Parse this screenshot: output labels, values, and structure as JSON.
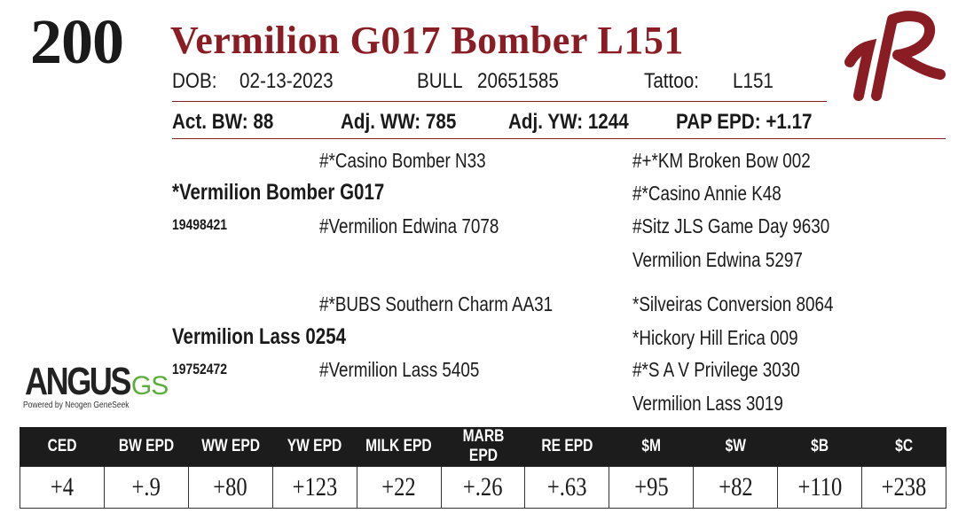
{
  "lot_number": "200",
  "animal_name": "Vermilion G017 Bomber L151",
  "info_row": {
    "dob_label": "DOB:",
    "dob": "02-13-2023",
    "sex": "BULL",
    "registration": "20651585",
    "tattoo_label": "Tattoo:",
    "tattoo": "L151"
  },
  "stats_row": {
    "act_bw": "Act. BW: 88",
    "adj_ww": "Adj. WW: 785",
    "adj_yw": "Adj. YW: 1244",
    "pap_epd": "PAP EPD: +1.17"
  },
  "pedigree": {
    "sire": "*Vermilion Bomber G017",
    "sire_reg": "19498421",
    "sire_sire": "#*Casino Bomber N33",
    "sire_dam": "#Vermilion Edwina 7078",
    "sire_sire_sire": "#+*KM Broken Bow 002",
    "sire_sire_dam": "#*Casino Annie K48",
    "sire_dam_sire": "#Sitz JLS Game Day 9630",
    "sire_dam_dam": "Vermilion Edwina 5297",
    "dam": "Vermilion Lass 0254",
    "dam_reg": "19752472",
    "dam_sire": "#*BUBS Southern Charm AA31",
    "dam_dam": "#Vermilion Lass 5405",
    "dam_sire_sire": "*Silveiras Conversion 8064",
    "dam_sire_dam": "*Hickory Hill Erica 009",
    "dam_dam_sire": "#*S A V Privilege 3030",
    "dam_dam_dam": "Vermilion Lass 3019"
  },
  "angus_logo": {
    "word": "ANGUS",
    "suffix": "GS",
    "tagline": "Powered by Neogen GeneSeek"
  },
  "brand_logo_icon": "vr-brand-icon",
  "colors": {
    "accent": "#8a1c24",
    "header_bg": "#1c1c1c",
    "logo_green": "#5cae3b"
  },
  "epd_table": {
    "headers": [
      "CED",
      "BW EPD",
      "WW EPD",
      "YW EPD",
      "MILK EPD",
      "MARB EPD",
      "RE EPD",
      "$M",
      "$W",
      "$B",
      "$C"
    ],
    "values": [
      "+4",
      "+.9",
      "+80",
      "+123",
      "+22",
      "+.26",
      "+.63",
      "+95",
      "+82",
      "+110",
      "+238"
    ]
  }
}
